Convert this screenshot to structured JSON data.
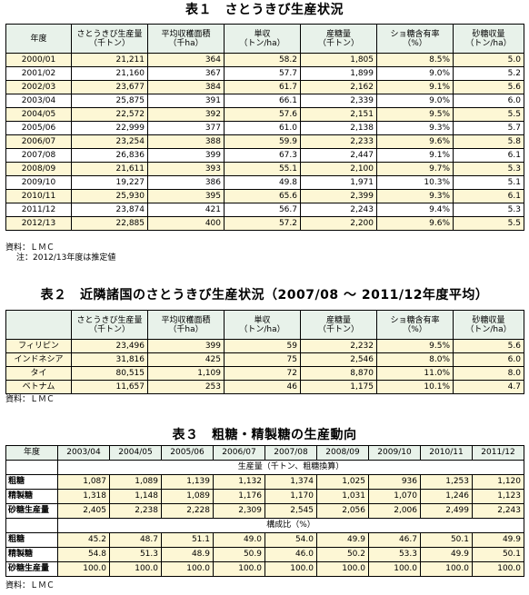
{
  "table1": {
    "title": "表１　さとうきび生産状況",
    "headers": [
      "年度",
      "さとうきび生産量\n（千トン）",
      "平均収穫面積\n（千ha）",
      "単収\n（トン/ha）",
      "産糖量\n（千トン）",
      "ショ糖含有率\n（%）",
      "砂糖収量\n（トン/ha）"
    ],
    "rows": [
      [
        "2000/01",
        "21,211",
        "364",
        "58.2",
        "1,805",
        "8.5%",
        "5.0"
      ],
      [
        "2001/02",
        "21,160",
        "367",
        "57.7",
        "1,899",
        "9.0%",
        "5.2"
      ],
      [
        "2002/03",
        "23,677",
        "384",
        "61.7",
        "2,162",
        "9.1%",
        "5.6"
      ],
      [
        "2003/04",
        "25,875",
        "391",
        "66.1",
        "2,339",
        "9.0%",
        "6.0"
      ],
      [
        "2004/05",
        "22,572",
        "392",
        "57.6",
        "2,151",
        "9.5%",
        "5.5"
      ],
      [
        "2005/06",
        "22,999",
        "377",
        "61.0",
        "2,138",
        "9.3%",
        "5.7"
      ],
      [
        "2006/07",
        "23,254",
        "388",
        "59.9",
        "2,233",
        "9.6%",
        "5.8"
      ],
      [
        "2007/08",
        "26,836",
        "399",
        "67.3",
        "2,447",
        "9.1%",
        "6.1"
      ],
      [
        "2008/09",
        "21,611",
        "393",
        "55.1",
        "2,100",
        "9.7%",
        "5.3"
      ],
      [
        "2009/10",
        "19,227",
        "386",
        "49.8",
        "1,971",
        "10.3%",
        "5.1"
      ],
      [
        "2010/11",
        "25,930",
        "395",
        "65.6",
        "2,399",
        "9.3%",
        "6.1"
      ],
      [
        "2011/12",
        "23,874",
        "421",
        "56.7",
        "2,243",
        "9.4%",
        "5.3"
      ],
      [
        "2012/13",
        "22,885",
        "400",
        "57.2",
        "2,200",
        "9.6%",
        "5.5"
      ]
    ],
    "source": "資料：ＬＭＣ",
    "note": "注：2012/13年度は推定値"
  },
  "table2": {
    "title": "表２　近隣諸国のさとうきび生産状況（2007/08 ～ 2011/12年度平均）",
    "headers": [
      "",
      "さとうきび生産量\n（千トン）",
      "平均収穫面積\n（千ha）",
      "単収\n（トン/ha）",
      "産糖量\n（千トン）",
      "ショ糖含有率\n（%）",
      "砂糖収量\n（トン/ha）"
    ],
    "rows": [
      [
        "フィリピン",
        "23,496",
        "399",
        "59",
        "2,232",
        "9.5%",
        "5.6"
      ],
      [
        "インドネシア",
        "31,816",
        "425",
        "75",
        "2,546",
        "8.0%",
        "6.0"
      ],
      [
        "タイ",
        "80,515",
        "1,109",
        "72",
        "8,870",
        "11.0%",
        "8.0"
      ],
      [
        "ベトナム",
        "11,657",
        "253",
        "46",
        "1,175",
        "10.1%",
        "4.7"
      ]
    ],
    "source": "資料：ＬＭＣ"
  },
  "table3": {
    "title": "表３　粗糖・精製糖の生産動向",
    "headers": [
      "年度",
      "2003/04",
      "2004/05",
      "2005/06",
      "2006/07",
      "2007/08",
      "2008/09",
      "2009/10",
      "2010/11",
      "2011/12"
    ],
    "section1_label": "生産量（千トン、粗糖換算）",
    "section1_rows": [
      [
        "粗糖",
        "1,087",
        "1,089",
        "1,139",
        "1,132",
        "1,374",
        "1,025",
        "936",
        "1,253",
        "1,120"
      ],
      [
        "精製糖",
        "1,318",
        "1,148",
        "1,089",
        "1,176",
        "1,170",
        "1,031",
        "1,070",
        "1,246",
        "1,123"
      ],
      [
        "砂糖生産量",
        "2,405",
        "2,238",
        "2,228",
        "2,309",
        "2,545",
        "2,056",
        "2,006",
        "2,499",
        "2,243"
      ]
    ],
    "section2_label": "構成比（%）",
    "section2_rows": [
      [
        "粗糖",
        "45.2",
        "48.7",
        "51.1",
        "49.0",
        "54.0",
        "49.9",
        "46.7",
        "50.1",
        "49.9"
      ],
      [
        "精製糖",
        "54.8",
        "51.3",
        "48.9",
        "50.9",
        "46.0",
        "50.2",
        "53.3",
        "49.9",
        "50.1"
      ],
      [
        "砂糖生産量",
        "100.0",
        "100.0",
        "100.0",
        "100.0",
        "100.0",
        "100.0",
        "100.0",
        "100.0",
        "100.0"
      ]
    ],
    "source": "資料：ＬＭＣ"
  }
}
